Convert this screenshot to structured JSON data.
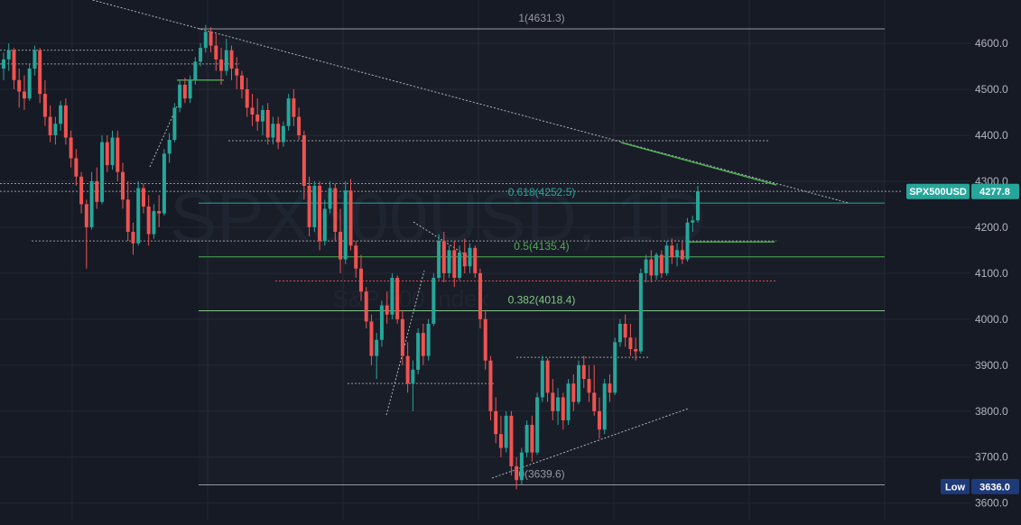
{
  "chart_data": {
    "type": "candlestick",
    "title": "",
    "watermark": {
      "symbol": "SPX500USD, 1D",
      "name": "S&P 500 Index"
    },
    "yaxis": {
      "side": "right",
      "range": [
        3598,
        4680
      ],
      "ticks": [
        3600,
        3700,
        3800,
        3900,
        4000,
        4100,
        4200,
        4300,
        4400,
        4500,
        4600
      ]
    },
    "grid": true,
    "colors": {
      "background": "#161a25",
      "up": "#26a69a",
      "down": "#ef5350",
      "grid": "#232733",
      "axis_text": "#b2b5be"
    },
    "fib_levels": [
      {
        "ratio": "1",
        "value": 4631.3,
        "label": "1(4631.3)",
        "color": "#9598a1"
      },
      {
        "ratio": "0.618",
        "value": 4252.5,
        "label": "0.618(4252.5)",
        "color": "#26a69a"
      },
      {
        "ratio": "0.5",
        "value": 4135.4,
        "label": "0.5(4135.4)",
        "color": "#4caf50"
      },
      {
        "ratio": "0.382",
        "value": 4018.4,
        "label": "0.382(4018.4)",
        "color": "#81c784"
      },
      {
        "ratio": "0",
        "value": 3639.6,
        "label": "0(3639.6)",
        "color": "#9598a1"
      }
    ],
    "price_badge": {
      "symbol": "SPX500USD",
      "value": "4277.8",
      "price": 4277.8,
      "color": "#26a69a"
    },
    "low_badge": {
      "label": "Low",
      "value": "3636.0",
      "price": 3636.0,
      "color": "#1e3a78"
    },
    "levels": [
      {
        "price": 4295,
        "color": "#ffffff",
        "style": "dotted",
        "from": 0,
        "to": 860
      },
      {
        "price": 4278,
        "color": "#ffffff",
        "style": "dotted",
        "from": 0,
        "to": 1000
      },
      {
        "price": 4170,
        "color": "#ffffff",
        "style": "dotted",
        "from": 35,
        "to": 860
      },
      {
        "price": 4083,
        "color": "#ef5350",
        "style": "dotted",
        "from": 305,
        "to": 860
      },
      {
        "price": 4168,
        "color": "#4caf50",
        "style": "solid",
        "from": 762,
        "to": 858
      },
      {
        "price": 4388,
        "color": "#ffffff",
        "style": "dotted",
        "from": 253,
        "to": 853
      },
      {
        "price": 4585,
        "color": "#ffffff",
        "style": "dotted",
        "from": 0,
        "to": 215
      },
      {
        "price": 4555,
        "color": "#ffffff",
        "style": "dotted",
        "from": 0,
        "to": 265
      },
      {
        "price": 3860,
        "color": "#ffffff",
        "style": "dotted",
        "from": 385,
        "to": 548
      },
      {
        "price": 3917,
        "color": "#ffffff",
        "style": "dotted",
        "from": 572,
        "to": 720
      },
      {
        "price": 4520,
        "color": "#4caf50",
        "style": "solid",
        "from": 196,
        "to": 248
      }
    ],
    "candles": [
      [
        4545,
        4580,
        4520,
        4565
      ],
      [
        4565,
        4600,
        4540,
        4585
      ],
      [
        4585,
        4590,
        4500,
        4520
      ],
      [
        4520,
        4545,
        4460,
        4495
      ],
      [
        4495,
        4530,
        4455,
        4480
      ],
      [
        4480,
        4555,
        4475,
        4545
      ],
      [
        4545,
        4595,
        4530,
        4585
      ],
      [
        4585,
        4590,
        4470,
        4490
      ],
      [
        4490,
        4520,
        4420,
        4440
      ],
      [
        4440,
        4465,
        4385,
        4400
      ],
      [
        4400,
        4440,
        4380,
        4425
      ],
      [
        4425,
        4475,
        4410,
        4465
      ],
      [
        4465,
        4480,
        4380,
        4395
      ],
      [
        4395,
        4410,
        4330,
        4350
      ],
      [
        4350,
        4370,
        4290,
        4310
      ],
      [
        4310,
        4320,
        4230,
        4250
      ],
      [
        4250,
        4260,
        4110,
        4200
      ],
      [
        4200,
        4320,
        4195,
        4300
      ],
      [
        4300,
        4330,
        4240,
        4255
      ],
      [
        4255,
        4400,
        4250,
        4385
      ],
      [
        4385,
        4400,
        4320,
        4335
      ],
      [
        4335,
        4410,
        4325,
        4395
      ],
      [
        4395,
        4410,
        4300,
        4320
      ],
      [
        4320,
        4340,
        4240,
        4260
      ],
      [
        4260,
        4300,
        4170,
        4190
      ],
      [
        4190,
        4210,
        4140,
        4165
      ],
      [
        4165,
        4300,
        4160,
        4285
      ],
      [
        4285,
        4295,
        4230,
        4245
      ],
      [
        4245,
        4270,
        4160,
        4185
      ],
      [
        4185,
        4250,
        4175,
        4235
      ],
      [
        4235,
        4270,
        4200,
        4230
      ],
      [
        4230,
        4370,
        4225,
        4360
      ],
      [
        4360,
        4405,
        4340,
        4390
      ],
      [
        4390,
        4470,
        4385,
        4460
      ],
      [
        4460,
        4520,
        4450,
        4510
      ],
      [
        4510,
        4525,
        4470,
        4480
      ],
      [
        4480,
        4530,
        4470,
        4520
      ],
      [
        4520,
        4570,
        4510,
        4560
      ],
      [
        4560,
        4600,
        4550,
        4590
      ],
      [
        4590,
        4640,
        4580,
        4625
      ],
      [
        4625,
        4635,
        4580,
        4595
      ],
      [
        4595,
        4620,
        4540,
        4565
      ],
      [
        4565,
        4590,
        4510,
        4540
      ],
      [
        4540,
        4610,
        4530,
        4585
      ],
      [
        4585,
        4595,
        4520,
        4545
      ],
      [
        4545,
        4570,
        4500,
        4530
      ],
      [
        4530,
        4540,
        4480,
        4500
      ],
      [
        4500,
        4525,
        4440,
        4460
      ],
      [
        4460,
        4490,
        4420,
        4445
      ],
      [
        4445,
        4480,
        4410,
        4430
      ],
      [
        4430,
        4465,
        4400,
        4455
      ],
      [
        4455,
        4470,
        4380,
        4395
      ],
      [
        4395,
        4440,
        4380,
        4425
      ],
      [
        4425,
        4440,
        4370,
        4385
      ],
      [
        4385,
        4430,
        4375,
        4420
      ],
      [
        4420,
        4490,
        4410,
        4480
      ],
      [
        4480,
        4500,
        4420,
        4440
      ],
      [
        4440,
        4460,
        4390,
        4400
      ],
      [
        4400,
        4410,
        4260,
        4290
      ],
      [
        4290,
        4310,
        4180,
        4200
      ],
      [
        4200,
        4300,
        4190,
        4290
      ],
      [
        4290,
        4300,
        4150,
        4170
      ],
      [
        4170,
        4260,
        4160,
        4240
      ],
      [
        4240,
        4300,
        4230,
        4285
      ],
      [
        4285,
        4295,
        4170,
        4190
      ],
      [
        4190,
        4240,
        4100,
        4130
      ],
      [
        4130,
        4300,
        4120,
        4280
      ],
      [
        4280,
        4305,
        4150,
        4160
      ],
      [
        4160,
        4170,
        4090,
        4110
      ],
      [
        4110,
        4140,
        4040,
        4060
      ],
      [
        4060,
        4070,
        3980,
        3995
      ],
      [
        3995,
        4010,
        3900,
        3920
      ],
      [
        3920,
        3970,
        3870,
        3955
      ],
      [
        3955,
        4040,
        3940,
        4030
      ],
      [
        4030,
        4060,
        3990,
        4010
      ],
      [
        4010,
        4100,
        4000,
        4090
      ],
      [
        4090,
        4095,
        3990,
        4000
      ],
      [
        4000,
        4020,
        3900,
        3920
      ],
      [
        3920,
        3950,
        3840,
        3860
      ],
      [
        3860,
        3910,
        3800,
        3890
      ],
      [
        3890,
        3980,
        3880,
        3970
      ],
      [
        3970,
        3990,
        3900,
        3920
      ],
      [
        3920,
        4000,
        3910,
        3990
      ],
      [
        3990,
        4100,
        3985,
        4090
      ],
      [
        4090,
        4185,
        4085,
        4170
      ],
      [
        4170,
        4190,
        4080,
        4100
      ],
      [
        4100,
        4160,
        4090,
        4150
      ],
      [
        4150,
        4170,
        4070,
        4090
      ],
      [
        4090,
        4160,
        4085,
        4145
      ],
      [
        4145,
        4175,
        4100,
        4115
      ],
      [
        4115,
        4165,
        4100,
        4155
      ],
      [
        4155,
        4160,
        4090,
        4100
      ],
      [
        4100,
        4110,
        3980,
        4000
      ],
      [
        4000,
        4020,
        3890,
        3910
      ],
      [
        3910,
        3920,
        3780,
        3800
      ],
      [
        3800,
        3830,
        3730,
        3750
      ],
      [
        3750,
        3790,
        3700,
        3720
      ],
      [
        3720,
        3800,
        3710,
        3790
      ],
      [
        3790,
        3800,
        3660,
        3680
      ],
      [
        3680,
        3700,
        3630,
        3650
      ],
      [
        3650,
        3720,
        3640,
        3710
      ],
      [
        3710,
        3780,
        3700,
        3770
      ],
      [
        3770,
        3790,
        3690,
        3710
      ],
      [
        3710,
        3840,
        3705,
        3830
      ],
      [
        3830,
        3920,
        3820,
        3910
      ],
      [
        3910,
        3915,
        3820,
        3840
      ],
      [
        3840,
        3870,
        3780,
        3800
      ],
      [
        3800,
        3850,
        3770,
        3830
      ],
      [
        3830,
        3840,
        3760,
        3780
      ],
      [
        3780,
        3870,
        3770,
        3860
      ],
      [
        3860,
        3880,
        3800,
        3820
      ],
      [
        3820,
        3910,
        3815,
        3900
      ],
      [
        3900,
        3920,
        3850,
        3870
      ],
      [
        3870,
        3900,
        3820,
        3840
      ],
      [
        3840,
        3900,
        3790,
        3800
      ],
      [
        3800,
        3830,
        3740,
        3760
      ],
      [
        3760,
        3870,
        3750,
        3860
      ],
      [
        3860,
        3880,
        3820,
        3840
      ],
      [
        3840,
        3960,
        3835,
        3950
      ],
      [
        3950,
        4000,
        3940,
        3990
      ],
      [
        3990,
        4010,
        3940,
        3960
      ],
      [
        3960,
        3990,
        3920,
        3935
      ],
      [
        3935,
        3960,
        3910,
        3930
      ],
      [
        3930,
        4110,
        3925,
        4100
      ],
      [
        4100,
        4140,
        4080,
        4130
      ],
      [
        4130,
        4150,
        4080,
        4095
      ],
      [
        4095,
        4145,
        4085,
        4140
      ],
      [
        4140,
        4150,
        4090,
        4100
      ],
      [
        4100,
        4170,
        4095,
        4160
      ],
      [
        4160,
        4175,
        4120,
        4135
      ],
      [
        4135,
        4165,
        4115,
        4150
      ],
      [
        4150,
        4170,
        4120,
        4130
      ],
      [
        4130,
        4220,
        4125,
        4210
      ],
      [
        4210,
        4225,
        4190,
        4215
      ],
      [
        4215,
        4290,
        4210,
        4278
      ]
    ]
  }
}
